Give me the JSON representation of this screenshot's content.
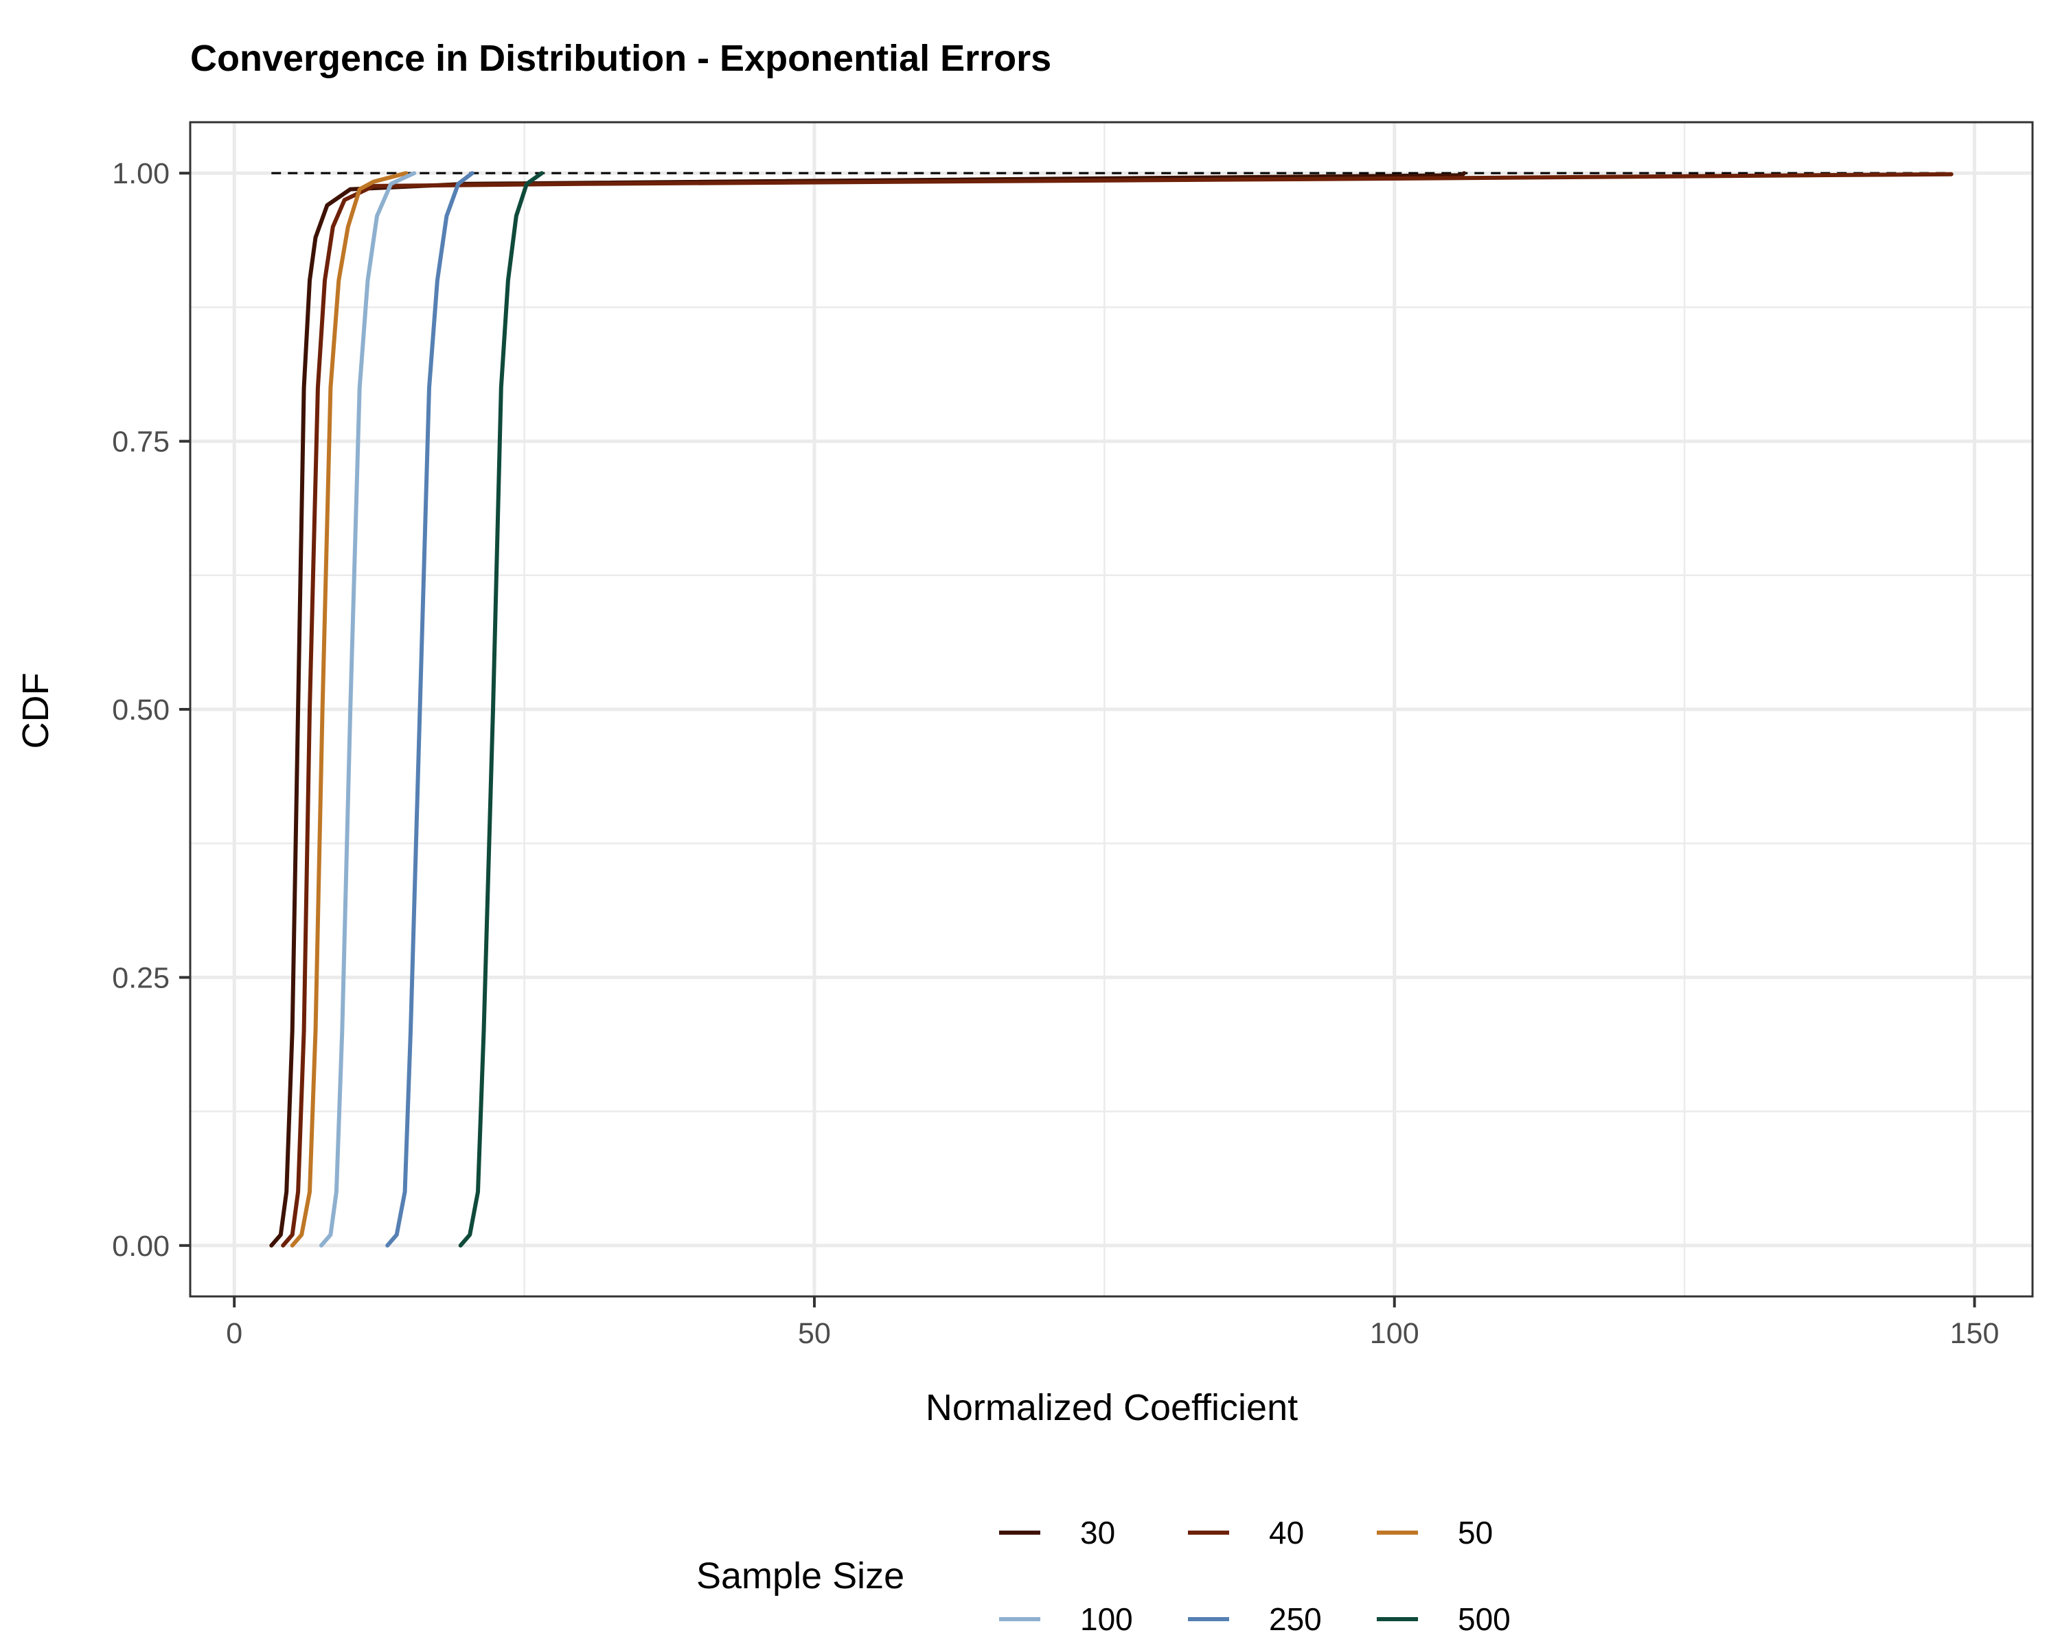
{
  "chart_data": {
    "type": "line",
    "title": "Convergence in Distribution - Exponential Errors",
    "xlabel": "Normalized Coefficient",
    "ylabel": "CDF",
    "xlim": [
      -3.8,
      155
    ],
    "ylim": [
      -0.0475,
      1.0475
    ],
    "x_ticks": [
      0,
      50,
      100,
      150
    ],
    "x_tick_labels": [
      "0",
      "50",
      "100",
      "150"
    ],
    "y_ticks": [
      0,
      0.25,
      0.5,
      0.75,
      1
    ],
    "y_tick_labels": [
      "0.00",
      "0.25",
      "0.50",
      "0.75",
      "1.00"
    ],
    "x_minor_ticks": [
      25,
      75,
      125
    ],
    "y_minor_ticks": [
      0.125,
      0.375,
      0.625,
      0.875
    ],
    "grid": true,
    "legend_title": "Sample Size",
    "legend_position": "bottom",
    "reference_line": {
      "style": "dashed",
      "color": "#000000",
      "x": [
        3.2,
        148
      ],
      "y": [
        1.0,
        1.0
      ]
    },
    "series": [
      {
        "name": "30",
        "color": "#3d1204",
        "points": [
          [
            3.2,
            0
          ],
          [
            4.0,
            0.01
          ],
          [
            4.5,
            0.05
          ],
          [
            5.0,
            0.2
          ],
          [
            5.5,
            0.5
          ],
          [
            6.0,
            0.8
          ],
          [
            6.5,
            0.9
          ],
          [
            7.0,
            0.94
          ],
          [
            8.0,
            0.97
          ],
          [
            10.0,
            0.985
          ],
          [
            20,
            0.99
          ],
          [
            105.8,
            0.998
          ],
          [
            106,
            1.0
          ]
        ]
      },
      {
        "name": "40",
        "color": "#6e2109",
        "points": [
          [
            4.2,
            0
          ],
          [
            5.0,
            0.01
          ],
          [
            5.5,
            0.05
          ],
          [
            6.0,
            0.2
          ],
          [
            6.5,
            0.5
          ],
          [
            7.2,
            0.8
          ],
          [
            7.8,
            0.9
          ],
          [
            8.5,
            0.95
          ],
          [
            9.5,
            0.975
          ],
          [
            12,
            0.988
          ],
          [
            30,
            0.99
          ],
          [
            100,
            0.995
          ],
          [
            148,
            0.999
          ]
        ]
      },
      {
        "name": "50",
        "color": "#bf7726",
        "points": [
          [
            5.0,
            0
          ],
          [
            5.8,
            0.01
          ],
          [
            6.5,
            0.05
          ],
          [
            7.0,
            0.2
          ],
          [
            7.6,
            0.5
          ],
          [
            8.3,
            0.8
          ],
          [
            9.0,
            0.9
          ],
          [
            9.8,
            0.95
          ],
          [
            10.8,
            0.985
          ],
          [
            12,
            0.992
          ],
          [
            14.8,
            1.0
          ]
        ]
      },
      {
        "name": "100",
        "color": "#8eb0cf",
        "points": [
          [
            7.5,
            0
          ],
          [
            8.3,
            0.01
          ],
          [
            8.8,
            0.05
          ],
          [
            9.3,
            0.2
          ],
          [
            10.0,
            0.5
          ],
          [
            10.8,
            0.8
          ],
          [
            11.5,
            0.9
          ],
          [
            12.3,
            0.96
          ],
          [
            13.5,
            0.99
          ],
          [
            15.5,
            1.0
          ]
        ]
      },
      {
        "name": "250",
        "color": "#5680b3",
        "points": [
          [
            13.2,
            0
          ],
          [
            14.0,
            0.01
          ],
          [
            14.7,
            0.05
          ],
          [
            15.2,
            0.2
          ],
          [
            16.0,
            0.5
          ],
          [
            16.8,
            0.8
          ],
          [
            17.5,
            0.9
          ],
          [
            18.3,
            0.96
          ],
          [
            19.3,
            0.99
          ],
          [
            20.5,
            1.0
          ]
        ]
      },
      {
        "name": "500",
        "color": "#0f4a3a",
        "points": [
          [
            19.5,
            0
          ],
          [
            20.3,
            0.01
          ],
          [
            21.0,
            0.05
          ],
          [
            21.5,
            0.2
          ],
          [
            22.3,
            0.5
          ],
          [
            23.0,
            0.8
          ],
          [
            23.6,
            0.9
          ],
          [
            24.3,
            0.96
          ],
          [
            25.2,
            0.99
          ],
          [
            26.5,
            1.0
          ]
        ]
      }
    ]
  }
}
